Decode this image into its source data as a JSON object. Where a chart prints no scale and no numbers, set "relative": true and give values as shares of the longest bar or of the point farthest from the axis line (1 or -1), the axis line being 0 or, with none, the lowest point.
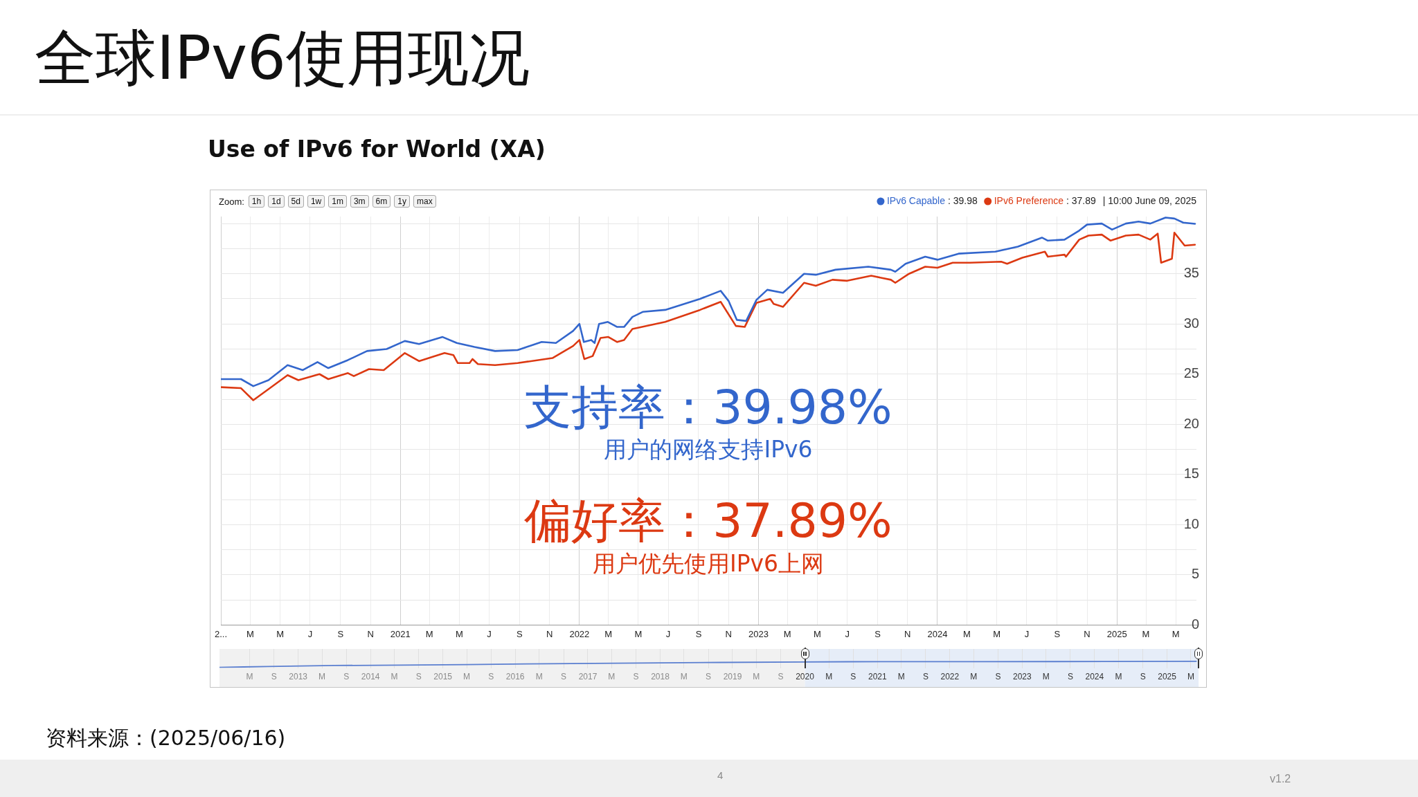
{
  "chart_data": [
    {
      "type": "line",
      "title": "全球IPv6使用现况",
      "subtitle": "Use of IPv6 for World (XA)",
      "legend": "top right",
      "grid": true,
      "xlim": [
        "2020-01-01",
        "2025-06-12"
      ],
      "xticks": [
        {
          "value": "2020-01",
          "label": "2..."
        },
        {
          "value": "2020-03",
          "label": "M"
        },
        {
          "value": "2020-05",
          "label": "M"
        },
        {
          "value": "2020-07",
          "label": "J"
        },
        {
          "value": "2020-09",
          "label": "S"
        },
        {
          "value": "2020-11",
          "label": "N"
        },
        {
          "value": "2021-01",
          "label": "2021"
        },
        {
          "value": "2021-03",
          "label": "M"
        },
        {
          "value": "2021-05",
          "label": "M"
        },
        {
          "value": "2021-07",
          "label": "J"
        },
        {
          "value": "2021-09",
          "label": "S"
        },
        {
          "value": "2021-11",
          "label": "N"
        },
        {
          "value": "2022-01",
          "label": "2022"
        },
        {
          "value": "2022-03",
          "label": "M"
        },
        {
          "value": "2022-05",
          "label": "M"
        },
        {
          "value": "2022-07",
          "label": "J"
        },
        {
          "value": "2022-09",
          "label": "S"
        },
        {
          "value": "2022-11",
          "label": "N"
        },
        {
          "value": "2023-01",
          "label": "2023"
        },
        {
          "value": "2023-03",
          "label": "M"
        },
        {
          "value": "2023-05",
          "label": "M"
        },
        {
          "value": "2023-07",
          "label": "J"
        },
        {
          "value": "2023-09",
          "label": "S"
        },
        {
          "value": "2023-11",
          "label": "N"
        },
        {
          "value": "2024-01",
          "label": "2024"
        },
        {
          "value": "2024-03",
          "label": "M"
        },
        {
          "value": "2024-05",
          "label": "M"
        },
        {
          "value": "2024-07",
          "label": "J"
        },
        {
          "value": "2024-09",
          "label": "S"
        },
        {
          "value": "2024-11",
          "label": "N"
        },
        {
          "value": "2025-01",
          "label": "2025"
        },
        {
          "value": "2025-03",
          "label": "M"
        },
        {
          "value": "2025-05",
          "label": "M"
        }
      ],
      "ylim": [
        0,
        40.7
      ],
      "yticks": [
        0,
        {
          "value": 2.5,
          "label": null
        },
        5,
        {
          "value": 7.5,
          "label": null
        },
        10,
        {
          "value": 12.5,
          "label": null
        },
        15,
        {
          "value": 17.5,
          "label": null
        },
        20,
        {
          "value": 22.5,
          "label": null
        },
        25,
        {
          "value": 27.5,
          "label": null
        },
        30,
        {
          "value": 32.5,
          "label": null
        },
        35,
        {
          "value": 37.5,
          "label": null
        },
        {
          "value": 40,
          "label": null
        }
      ],
      "series": [
        {
          "name": "IPv6 Capable",
          "color": "#3366cc",
          "x": [
            "2020-01-01",
            "2020-02-11",
            "2020-03-07",
            "2020-04-07",
            "2020-05-16",
            "2020-06-16",
            "2020-07-16",
            "2020-08-07",
            "2020-09-16",
            "2020-10-25",
            "2020-12-04",
            "2021-01-10",
            "2021-02-08",
            "2021-03-28",
            "2021-04-26",
            "2021-06-01",
            "2021-07-13",
            "2021-08-28",
            "2021-10-16",
            "2021-11-14",
            "2021-12-19",
            "2022-01-01",
            "2022-01-10",
            "2022-01-25",
            "2022-02-01",
            "2022-02-10",
            "2022-02-28",
            "2022-03-19",
            "2022-04-02",
            "2022-04-19",
            "2022-05-10",
            "2022-06-25",
            "2022-09-04",
            "2022-10-16",
            "2022-11-01",
            "2022-11-18",
            "2022-12-07",
            "2022-12-28",
            "2023-01-19",
            "2023-02-20",
            "2023-04-04",
            "2023-04-28",
            "2023-06-07",
            "2023-08-13",
            "2023-09-28",
            "2023-10-07",
            "2023-10-28",
            "2023-12-07",
            "2024-01-01",
            "2024-02-13",
            "2024-04-28",
            "2024-06-13",
            "2024-08-01",
            "2024-08-13",
            "2024-09-16",
            "2024-10-16",
            "2024-11-01",
            "2024-12-01",
            "2024-12-22",
            "2025-01-19",
            "2025-02-14",
            "2025-03-10",
            "2025-04-10",
            "2025-04-28",
            "2025-05-16",
            "2025-06-09"
          ],
          "values": [
            24.5,
            24.5,
            23.8,
            24.4,
            25.9,
            25.4,
            26.2,
            25.6,
            26.4,
            27.3,
            27.5,
            28.3,
            28.0,
            28.7,
            28.1,
            27.7,
            27.3,
            27.4,
            28.2,
            28.1,
            29.3,
            30.0,
            28.2,
            28.4,
            28.1,
            30.0,
            30.2,
            29.7,
            29.7,
            30.7,
            31.2,
            31.4,
            32.5,
            33.3,
            32.3,
            30.4,
            30.3,
            32.4,
            33.4,
            33.1,
            35.0,
            34.9,
            35.4,
            35.7,
            35.4,
            35.2,
            36.0,
            36.7,
            36.4,
            37.0,
            37.2,
            37.7,
            38.6,
            38.3,
            38.4,
            39.3,
            39.9,
            40.0,
            39.4,
            40.0,
            40.2,
            40.0,
            40.6,
            40.5,
            40.1,
            39.98
          ]
        },
        {
          "name": "IPv6 Preference",
          "color": "#dc3912",
          "x": [
            "2020-01-01",
            "2020-02-11",
            "2020-03-07",
            "2020-04-07",
            "2020-05-16",
            "2020-06-07",
            "2020-07-20",
            "2020-08-07",
            "2020-09-16",
            "2020-09-28",
            "2020-10-29",
            "2020-11-28",
            "2021-01-10",
            "2021-02-08",
            "2021-04-01",
            "2021-04-19",
            "2021-04-28",
            "2021-05-22",
            "2021-05-28",
            "2021-06-08",
            "2021-07-13",
            "2021-08-28",
            "2021-11-07",
            "2021-12-19",
            "2022-01-01",
            "2022-01-11",
            "2022-01-28",
            "2022-02-13",
            "2022-03-01",
            "2022-03-19",
            "2022-04-02",
            "2022-04-19",
            "2022-06-25",
            "2022-09-04",
            "2022-10-16",
            "2022-11-16",
            "2022-12-04",
            "2022-12-28",
            "2023-01-25",
            "2023-02-01",
            "2023-02-20",
            "2023-04-04",
            "2023-04-28",
            "2023-06-01",
            "2023-07-01",
            "2023-08-19",
            "2023-09-28",
            "2023-10-07",
            "2023-11-04",
            "2023-12-07",
            "2024-01-01",
            "2024-02-01",
            "2024-03-07",
            "2024-05-10",
            "2024-05-22",
            "2024-06-22",
            "2024-08-07",
            "2024-08-13",
            "2024-09-16",
            "2024-09-19",
            "2024-10-16",
            "2024-11-04",
            "2024-12-01",
            "2024-12-19",
            "2025-01-19",
            "2025-02-14",
            "2025-03-10",
            "2025-03-25",
            "2025-04-01",
            "2025-04-23",
            "2025-04-28",
            "2025-05-19",
            "2025-06-09"
          ],
          "values": [
            23.7,
            23.6,
            22.4,
            23.5,
            24.9,
            24.4,
            25.0,
            24.5,
            25.1,
            24.8,
            25.5,
            25.4,
            27.1,
            26.3,
            27.1,
            26.9,
            26.1,
            26.1,
            26.5,
            26.0,
            25.9,
            26.1,
            26.6,
            27.8,
            28.4,
            26.5,
            26.8,
            28.6,
            28.7,
            28.2,
            28.4,
            29.5,
            30.2,
            31.4,
            32.2,
            29.8,
            29.7,
            32.1,
            32.5,
            32.0,
            31.7,
            34.1,
            33.8,
            34.4,
            34.3,
            34.8,
            34.4,
            34.1,
            35.0,
            35.7,
            35.6,
            36.1,
            36.1,
            36.2,
            36.0,
            36.6,
            37.2,
            36.7,
            36.9,
            36.7,
            38.4,
            38.8,
            38.9,
            38.3,
            38.8,
            38.9,
            38.4,
            39.0,
            36.1,
            36.5,
            39.1,
            37.8,
            37.89
          ]
        }
      ],
      "annotations": [
        ": 39.98",
        ": 37.89",
        "| 10:00 June 09, 2025",
        "支持率：39.98%",
        "用户的网络支持IPv6",
        "偏好率：37.89%",
        "用户优先使用IPv6上网",
        "资料来源：(2025/06/16)",
        "4",
        "v1.2",
        "Zoom:",
        "1h",
        "1d",
        "5d",
        "1w",
        "1m",
        "3m",
        "6m",
        "1y",
        "max"
      ]
    },
    {
      "type": "line",
      "relative": true,
      "grid": "x",
      "xlim": [
        "2011-12-01",
        "2025-06-12"
      ],
      "xticks": [
        {
          "value": "2012-05",
          "label": "M"
        },
        {
          "value": "2012-09",
          "label": "S"
        },
        {
          "value": "2013-01",
          "label": "2013"
        },
        {
          "value": "2013-05",
          "label": "M"
        },
        {
          "value": "2013-09",
          "label": "S"
        },
        {
          "value": "2014-01",
          "label": "2014"
        },
        {
          "value": "2014-05",
          "label": "M"
        },
        {
          "value": "2014-09",
          "label": "S"
        },
        {
          "value": "2015-01",
          "label": "2015"
        },
        {
          "value": "2015-05",
          "label": "M"
        },
        {
          "value": "2015-09",
          "label": "S"
        },
        {
          "value": "2016-01",
          "label": "2016"
        },
        {
          "value": "2016-05",
          "label": "M"
        },
        {
          "value": "2016-09",
          "label": "S"
        },
        {
          "value": "2017-01",
          "label": "2017"
        },
        {
          "value": "2017-05",
          "label": "M"
        },
        {
          "value": "2017-09",
          "label": "S"
        },
        {
          "value": "2018-01",
          "label": "2018"
        },
        {
          "value": "2018-05",
          "label": "M"
        },
        {
          "value": "2018-09",
          "label": "S"
        },
        {
          "value": "2019-01",
          "label": "2019"
        },
        {
          "value": "2019-05",
          "label": "M"
        },
        {
          "value": "2019-09",
          "label": "S"
        },
        {
          "value": "2020-01",
          "label": "2020"
        },
        {
          "value": "2020-05",
          "label": "M"
        },
        {
          "value": "2020-09",
          "label": "S"
        },
        {
          "value": "2021-01",
          "label": "2021"
        },
        {
          "value": "2021-05",
          "label": "M"
        },
        {
          "value": "2021-09",
          "label": "S"
        },
        {
          "value": "2022-01",
          "label": "2022"
        },
        {
          "value": "2022-05",
          "label": "M"
        },
        {
          "value": "2022-09",
          "label": "S"
        },
        {
          "value": "2023-01",
          "label": "2023"
        },
        {
          "value": "2023-05",
          "label": "M"
        },
        {
          "value": "2023-09",
          "label": "S"
        },
        {
          "value": "2024-01",
          "label": "2024"
        },
        {
          "value": "2024-05",
          "label": "M"
        },
        {
          "value": "2024-09",
          "label": "S"
        },
        {
          "value": "2025-01",
          "label": "2025"
        },
        {
          "value": "2025-05",
          "label": "M"
        }
      ],
      "bands": [
        {
          "axis": "x",
          "from": "2011-12-01",
          "to": "2020-01-01",
          "color": "#f1f1f1"
        },
        {
          "axis": "x",
          "from": "2020-01-01",
          "to": "2025-06-09",
          "color": "#e6edf8"
        }
      ],
      "series": [
        {
          "color": "#5b7fd0",
          "x": [
            "2011-12-01",
            "2012-04",
            "2012-08",
            "2013-07",
            "2014-06",
            "2015-05",
            "2016-03",
            "2017-02",
            "2018-01",
            "2018-11",
            "2019-12-01",
            "2020-08",
            "2022-05",
            "2024-03",
            "2025-05-28"
          ],
          "values": [
            0,
            0.08,
            0.15,
            0.31,
            0.38,
            0.46,
            0.58,
            0.65,
            0.73,
            0.81,
            0.88,
            0.92,
            0.94,
            0.96,
            1
          ]
        }
      ]
    }
  ]
}
